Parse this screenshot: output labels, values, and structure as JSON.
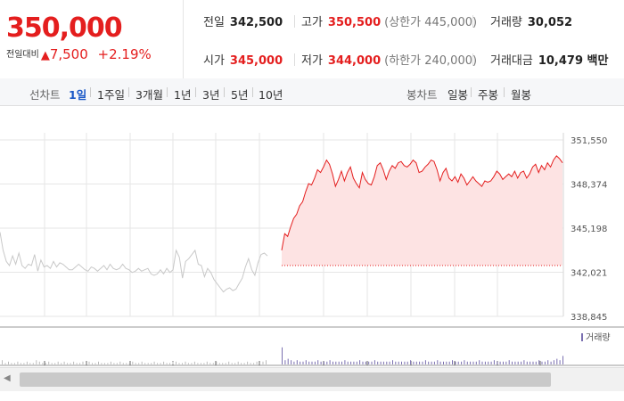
{
  "summary": {
    "price": "350,000",
    "change_label": "전일대비",
    "change_arrow": "▲",
    "change_value": "7,500",
    "change_pct": "+2.19%",
    "prev_close_label": "전일",
    "prev_close": "342,500",
    "high_label": "고가",
    "high": "350,500",
    "upper_limit": "(상한가 445,000)",
    "volume_label": "거래량",
    "volume": "30,052",
    "open_label": "시가",
    "open": "345,000",
    "low_label": "저가",
    "low": "344,000",
    "lower_limit": "(하한가 240,000)",
    "trade_value_label": "거래대금",
    "trade_value": "10,479 백만"
  },
  "toolbar": {
    "line_label": "선차트",
    "periods": [
      "1일",
      "1주일",
      "3개월",
      "1년",
      "3년",
      "5년",
      "10년"
    ],
    "selected_period": "1일",
    "candle_label": "봉차트",
    "candles": [
      "일봉",
      "주봉",
      "월봉"
    ]
  },
  "colors": {
    "up": "#e41e1e",
    "fill": "#fde3e3",
    "prev": "#c8c8c8",
    "grid": "#e6e6e6",
    "vol": "#7a6fb0",
    "selected": "#1a58c7"
  },
  "chart_data": {
    "type": "line",
    "ylim": [
      338845,
      351550
    ],
    "y_ticks": [
      "351,550",
      "348,374",
      "345,198",
      "342,021",
      "338,845"
    ],
    "baseline": 342500,
    "volume_legend": "거래량",
    "series": [
      {
        "values": [
          344900,
          343600,
          342800,
          342500,
          343200,
          342600,
          343400,
          342500,
          342300,
          342600,
          342500,
          343300,
          342100,
          342900,
          342400,
          342500,
          342300,
          342800,
          342400,
          342700,
          342600,
          342400,
          342200,
          342200,
          342400,
          342600,
          342400,
          342200,
          342100,
          342400,
          342300,
          342100,
          342300,
          342500,
          342200,
          342600,
          342300,
          342200,
          342300,
          342600,
          342300,
          342200,
          342000,
          342100,
          342300,
          342100,
          342200,
          342300,
          341900,
          341800,
          341900,
          342200,
          341900,
          342300,
          342000,
          342200,
          343600,
          343100,
          341600,
          342800,
          343000,
          343300,
          343600,
          342600,
          342500,
          341700,
          342300,
          342000,
          341500,
          341200,
          340900,
          340600,
          340800,
          340900,
          340700,
          340800,
          341200,
          341600,
          342400,
          343000,
          342200,
          341800,
          342700,
          343300,
          343400,
          343200
        ]
      },
      {
        "values": [
          343600,
          344800,
          344600,
          345300,
          345900,
          346200,
          346800,
          347100,
          347800,
          348400,
          348300,
          348800,
          349400,
          349200,
          349600,
          350100,
          349800,
          349100,
          348200,
          348700,
          349300,
          348600,
          349200,
          349600,
          348800,
          348400,
          348100,
          349200,
          348700,
          348400,
          348300,
          348900,
          349700,
          349900,
          349400,
          348700,
          349300,
          349700,
          349500,
          349900,
          350000,
          349700,
          349600,
          349800,
          350100,
          349900,
          349200,
          349300,
          349600,
          349800,
          350100,
          350000,
          349400,
          348600,
          349200,
          349500,
          348800,
          348600,
          348900,
          348500,
          349100,
          348800,
          348300,
          348600,
          348900,
          348600,
          348400,
          348200,
          348600,
          348500,
          348600,
          348900,
          349300,
          349100,
          348700,
          348900,
          349100,
          348900,
          349300,
          348800,
          349200,
          349300,
          348800,
          349100,
          349600,
          349800,
          349200,
          349700,
          349400,
          349900,
          349600,
          350100,
          350400,
          350200,
          349900
        ]
      }
    ],
    "volume_prev": [
      3,
      1,
      2,
      1,
      1,
      2,
      1,
      1,
      2,
      1,
      1,
      3,
      2,
      1,
      1,
      2,
      1,
      1,
      2,
      1,
      2,
      1,
      1,
      2,
      1,
      1,
      2,
      1,
      2,
      1,
      1,
      2,
      1,
      1,
      1,
      2,
      1,
      1,
      2,
      1,
      1,
      1,
      2,
      1,
      1,
      2,
      1,
      1,
      1,
      2,
      1,
      1,
      2,
      1,
      1,
      2,
      2,
      1,
      1,
      2,
      1,
      1,
      2,
      1,
      1,
      1,
      2,
      1,
      1,
      2,
      1,
      1,
      1,
      2,
      1,
      1,
      2,
      1,
      1,
      2,
      1,
      1,
      2,
      1,
      2,
      3
    ],
    "volume_today": [
      12,
      3,
      4,
      3,
      2,
      3,
      2,
      2,
      3,
      2,
      2,
      2,
      3,
      2,
      2,
      2,
      3,
      2,
      2,
      2,
      2,
      3,
      2,
      2,
      2,
      2,
      3,
      2,
      2,
      2,
      2,
      3,
      2,
      2,
      2,
      2,
      2,
      3,
      2,
      2,
      2,
      2,
      2,
      3,
      2,
      2,
      2,
      2,
      3,
      2,
      2,
      2,
      3,
      2,
      2,
      2,
      2,
      3,
      2,
      2,
      2,
      3,
      2,
      2,
      2,
      2,
      3,
      2,
      2,
      2,
      2,
      3,
      2,
      2,
      2,
      2,
      3,
      2,
      2,
      2,
      2,
      3,
      2,
      2,
      2,
      2,
      3,
      2,
      2,
      3,
      2,
      3,
      4,
      3,
      6
    ]
  }
}
